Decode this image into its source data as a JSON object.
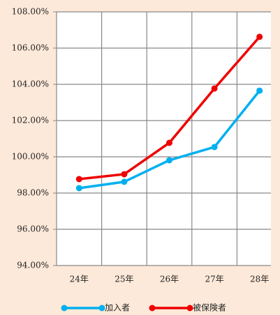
{
  "chart_data": {
    "type": "line",
    "categories": [
      "24年",
      "25年",
      "26年",
      "27年",
      "28年"
    ],
    "series": [
      {
        "name": "加入者",
        "color": "#00b0f0",
        "values": [
          98.27,
          98.62,
          99.81,
          100.54,
          103.65
        ]
      },
      {
        "name": "被保険者",
        "color": "#ee0000",
        "values": [
          98.77,
          99.04,
          100.77,
          103.77,
          106.62
        ]
      }
    ],
    "ylim": [
      94,
      108
    ],
    "yticks": [
      {
        "value": 94,
        "label": "94.00%"
      },
      {
        "value": 96,
        "label": "96.00%"
      },
      {
        "value": 98,
        "label": "98.00%"
      },
      {
        "value": 100,
        "label": "100.00%"
      },
      {
        "value": 102,
        "label": "102.00%"
      },
      {
        "value": 104,
        "label": "104.00%"
      },
      {
        "value": 106,
        "label": "106.00%"
      },
      {
        "value": 108,
        "label": "108.00%"
      }
    ],
    "grid": true,
    "legend": "bottom"
  }
}
